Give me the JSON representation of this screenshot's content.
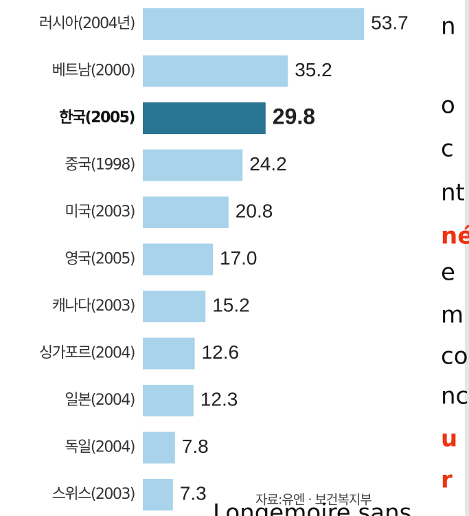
{
  "chart_data": {
    "type": "barh",
    "categories": [
      "러시아(2004년)",
      "베트남(2000)",
      "한국(2005)",
      "중국(1998)",
      "미국(2003)",
      "영국(2005)",
      "캐나다(2003)",
      "싱가포르(2004)",
      "일본(2004)",
      "독일(2004)",
      "스위스(2003)"
    ],
    "values": [
      53.7,
      35.2,
      29.8,
      24.2,
      20.8,
      17.0,
      15.2,
      12.6,
      12.3,
      7.8,
      7.3
    ],
    "value_labels": [
      "53.7",
      "35.2",
      "29.8",
      "24.2",
      "20.8",
      "17.0",
      "15.2",
      "12.6",
      "12.3",
      "7.8",
      "7.3"
    ],
    "colors": [
      "#a9d3eb",
      "#a9d3eb",
      "#2a7592",
      "#a9d3eb",
      "#a9d3eb",
      "#a9d3eb",
      "#a9d3eb",
      "#a9d3eb",
      "#a9d3eb",
      "#a9d3eb",
      "#a9d3eb"
    ],
    "source": "자료:유엔 · 보건복지부"
  },
  "overlay_text": [
    {
      "text": "n",
      "color": "#111111"
    },
    {
      "text": "o",
      "color": "#111111"
    },
    {
      "text": "c",
      "color": "#111111"
    },
    {
      "text": "nt",
      "color": "#111111"
    },
    {
      "text": "né",
      "color": "#ee3311"
    },
    {
      "text": "e",
      "color": "#111111"
    },
    {
      "text": "m",
      "color": "#111111"
    },
    {
      "text": "co",
      "color": "#111111"
    },
    {
      "text": "nc",
      "color": "#111111"
    },
    {
      "text": "u",
      "color": "#ee3311"
    },
    {
      "text": "r",
      "color": "#ee3311"
    },
    {
      "text": "Longemoire sans",
      "color": "#111111"
    }
  ]
}
